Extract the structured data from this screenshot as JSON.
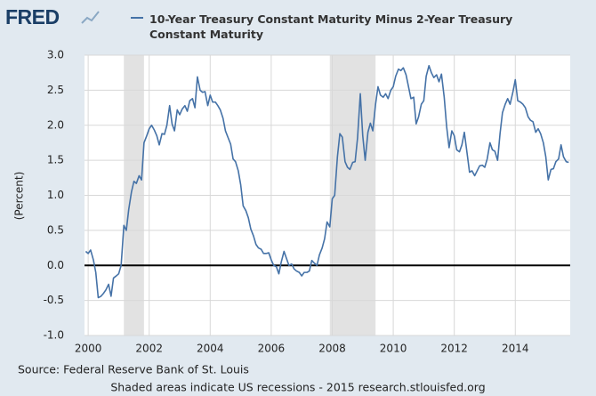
{
  "logo": "FRED",
  "chart_data": {
    "type": "line",
    "title": "10-Year Treasury Constant Maturity Minus 2-Year Treasury Constant Maturity",
    "ylabel": "(Percent)",
    "source": "Source: Federal Reserve Bank of St. Louis",
    "note": "Shaded areas indicate US recessions - 2015 research.stlouisfed.org",
    "xlim": [
      1999.88,
      2015.8
    ],
    "xticks": [
      2000,
      2002,
      2004,
      2006,
      2008,
      2010,
      2012,
      2014
    ],
    "ylim": [
      -1.0,
      3.0
    ],
    "yticks": [
      {
        "value": 3.0,
        "label": "3.0"
      },
      {
        "value": 2.5,
        "label": "2.5"
      },
      {
        "value": 2.0,
        "label": "2.0"
      },
      {
        "value": 1.5,
        "label": "1.5"
      },
      {
        "value": 1.0,
        "label": "1.0"
      },
      {
        "value": 0.5,
        "label": "0.5"
      },
      {
        "value": 0,
        "label": "0.0"
      },
      {
        "value": -0.5,
        "label": "-0.5"
      },
      {
        "value": -1.0,
        "label": "-1.0"
      }
    ],
    "grid": true,
    "recessions": [
      [
        2001.17,
        2001.83
      ],
      [
        2007.92,
        2009.42
      ]
    ],
    "x": [
      1999.92,
      2000,
      2000.08,
      2000.17,
      2000.25,
      2000.33,
      2000.42,
      2000.5,
      2000.58,
      2000.67,
      2000.75,
      2000.83,
      2000.92,
      2001,
      2001.08,
      2001.17,
      2001.25,
      2001.33,
      2001.42,
      2001.5,
      2001.58,
      2001.67,
      2001.75,
      2001.83,
      2001.92,
      2002,
      2002.08,
      2002.17,
      2002.25,
      2002.33,
      2002.42,
      2002.5,
      2002.58,
      2002.67,
      2002.75,
      2002.83,
      2002.92,
      2003,
      2003.08,
      2003.17,
      2003.25,
      2003.33,
      2003.42,
      2003.5,
      2003.58,
      2003.67,
      2003.75,
      2003.83,
      2003.92,
      2004,
      2004.08,
      2004.17,
      2004.25,
      2004.33,
      2004.42,
      2004.5,
      2004.58,
      2004.67,
      2004.75,
      2004.83,
      2004.92,
      2005,
      2005.08,
      2005.17,
      2005.25,
      2005.33,
      2005.42,
      2005.5,
      2005.58,
      2005.67,
      2005.75,
      2005.83,
      2005.92,
      2006,
      2006.08,
      2006.17,
      2006.25,
      2006.33,
      2006.42,
      2006.5,
      2006.58,
      2006.67,
      2006.75,
      2006.83,
      2006.92,
      2007,
      2007.08,
      2007.17,
      2007.25,
      2007.33,
      2007.42,
      2007.5,
      2007.58,
      2007.67,
      2007.75,
      2007.83,
      2007.92,
      2008,
      2008.08,
      2008.17,
      2008.25,
      2008.33,
      2008.42,
      2008.5,
      2008.58,
      2008.67,
      2008.75,
      2008.83,
      2008.92,
      2009,
      2009.08,
      2009.17,
      2009.25,
      2009.33,
      2009.42,
      2009.5,
      2009.58,
      2009.67,
      2009.75,
      2009.83,
      2009.92,
      2010,
      2010.08,
      2010.17,
      2010.25,
      2010.33,
      2010.42,
      2010.5,
      2010.58,
      2010.67,
      2010.75,
      2010.83,
      2010.92,
      2011,
      2011.08,
      2011.17,
      2011.25,
      2011.33,
      2011.42,
      2011.5,
      2011.58,
      2011.67,
      2011.75,
      2011.83,
      2011.92,
      2012,
      2012.08,
      2012.17,
      2012.25,
      2012.33,
      2012.42,
      2012.5,
      2012.58,
      2012.67,
      2012.75,
      2012.83,
      2012.92,
      2013,
      2013.08,
      2013.17,
      2013.25,
      2013.33,
      2013.42,
      2013.5,
      2013.58,
      2013.67,
      2013.75,
      2013.83,
      2013.92,
      2014,
      2014.08,
      2014.17,
      2014.25,
      2014.33,
      2014.42,
      2014.5,
      2014.58,
      2014.67,
      2014.75,
      2014.83,
      2014.92,
      2015,
      2015.08,
      2015.17,
      2015.25,
      2015.33,
      2015.42,
      2015.5,
      2015.58,
      2015.67,
      2015.75
    ],
    "series": [
      {
        "name": "10-Year Treasury Constant Maturity Minus 2-Year Treasury Constant Maturity",
        "color": "#4572a7",
        "values": [
          0.2,
          0.17,
          0.22,
          0.08,
          -0.1,
          -0.46,
          -0.44,
          -0.4,
          -0.35,
          -0.27,
          -0.44,
          -0.18,
          -0.15,
          -0.12,
          0.0,
          0.57,
          0.5,
          0.8,
          1.05,
          1.2,
          1.17,
          1.28,
          1.22,
          1.75,
          1.85,
          1.95,
          2.0,
          1.93,
          1.85,
          1.72,
          1.88,
          1.87,
          2.0,
          2.28,
          2.02,
          1.92,
          2.22,
          2.15,
          2.23,
          2.28,
          2.2,
          2.35,
          2.38,
          2.25,
          2.69,
          2.5,
          2.47,
          2.48,
          2.28,
          2.43,
          2.33,
          2.33,
          2.28,
          2.22,
          2.1,
          1.92,
          1.83,
          1.73,
          1.52,
          1.48,
          1.35,
          1.15,
          0.85,
          0.78,
          0.68,
          0.52,
          0.42,
          0.3,
          0.25,
          0.23,
          0.17,
          0.17,
          0.18,
          0.08,
          0.0,
          -0.02,
          -0.12,
          0.05,
          0.2,
          0.1,
          0.0,
          0.02,
          -0.05,
          -0.08,
          -0.1,
          -0.15,
          -0.1,
          -0.1,
          -0.08,
          0.07,
          0.03,
          0.0,
          0.15,
          0.25,
          0.38,
          0.62,
          0.55,
          0.95,
          1.0,
          1.55,
          1.88,
          1.83,
          1.48,
          1.4,
          1.37,
          1.47,
          1.48,
          1.82,
          2.45,
          1.85,
          1.5,
          1.9,
          2.03,
          1.92,
          2.3,
          2.55,
          2.43,
          2.4,
          2.45,
          2.38,
          2.5,
          2.55,
          2.7,
          2.8,
          2.78,
          2.82,
          2.72,
          2.55,
          2.38,
          2.4,
          2.02,
          2.12,
          2.3,
          2.35,
          2.7,
          2.85,
          2.75,
          2.68,
          2.72,
          2.62,
          2.73,
          2.4,
          1.98,
          1.68,
          1.92,
          1.85,
          1.65,
          1.62,
          1.72,
          1.9,
          1.6,
          1.33,
          1.35,
          1.28,
          1.35,
          1.42,
          1.43,
          1.4,
          1.52,
          1.75,
          1.65,
          1.63,
          1.5,
          1.88,
          2.18,
          2.3,
          2.38,
          2.3,
          2.47,
          2.65,
          2.35,
          2.33,
          2.3,
          2.25,
          2.12,
          2.07,
          2.05,
          1.9,
          1.95,
          1.88,
          1.75,
          1.55,
          1.22,
          1.37,
          1.38,
          1.48,
          1.52,
          1.72,
          1.55,
          1.48,
          1.47
        ]
      }
    ]
  }
}
